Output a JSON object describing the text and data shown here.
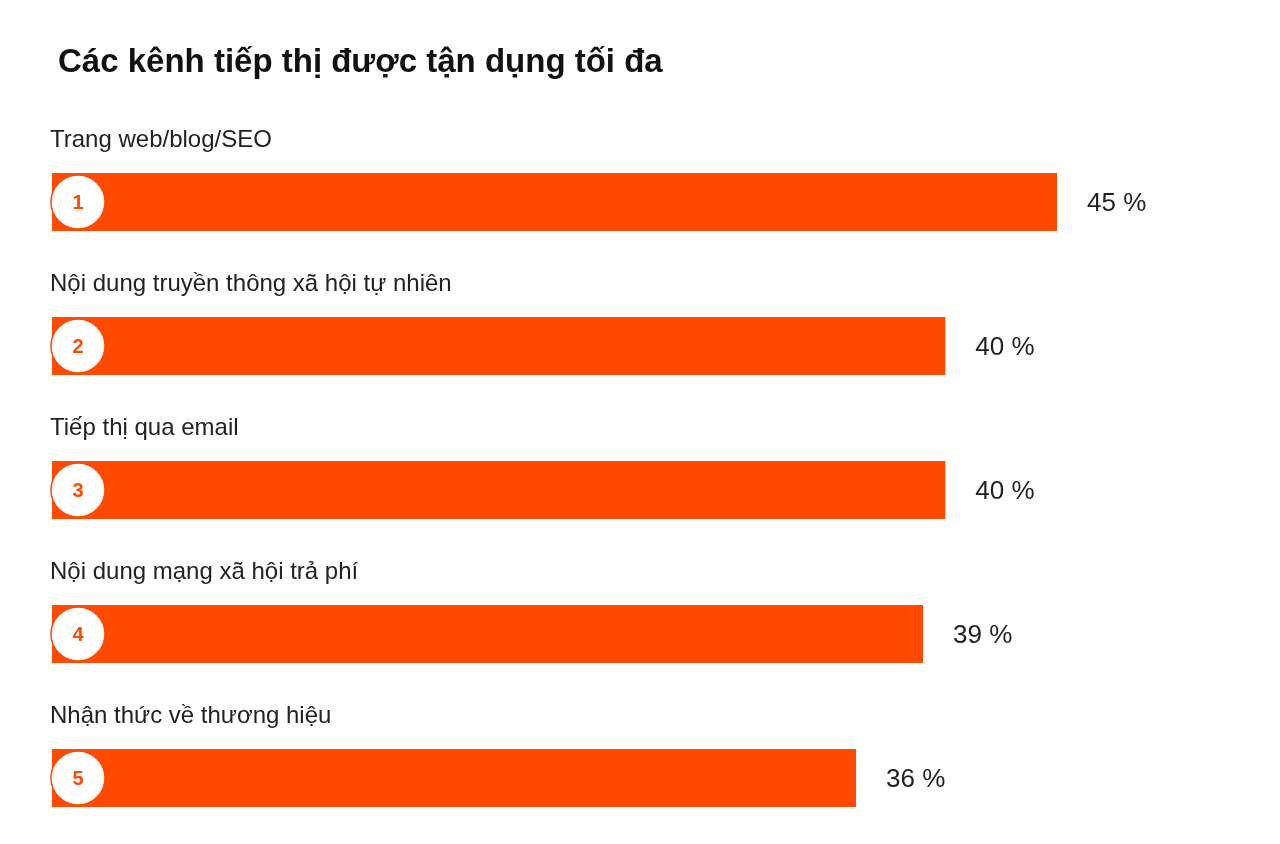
{
  "chart_data": {
    "type": "bar",
    "orientation": "horizontal",
    "title": "Các kênh tiếp thị được tận dụng tối đa",
    "categories": [
      "Trang web/blog/SEO",
      "Nội dung truyền thông xã hội tự nhiên",
      "Tiếp thị qua email",
      "Nội dung mạng xã hội trả phí",
      "Nhận thức về thương hiệu"
    ],
    "values": [
      45,
      40,
      40,
      39,
      36
    ],
    "value_labels": [
      "45 %",
      "40 %",
      "40 %",
      "39 %",
      "36 %"
    ],
    "color": "#ff4a00",
    "annotations": [
      "1",
      "2",
      "3",
      "4",
      "5"
    ]
  }
}
